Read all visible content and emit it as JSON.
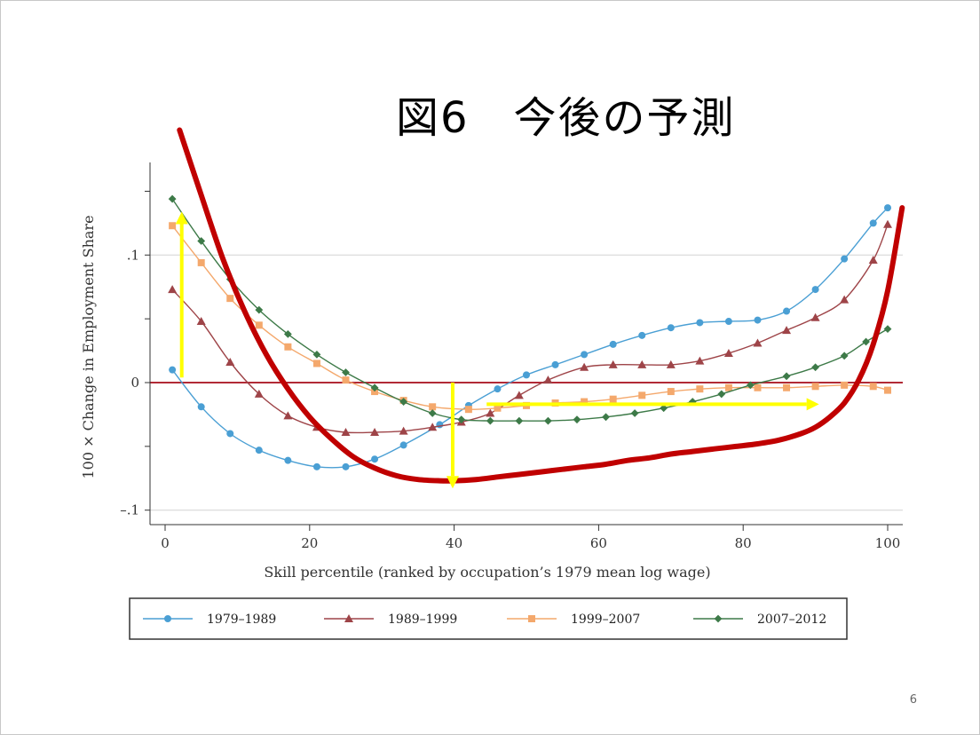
{
  "slide": {
    "title": "図6　今後の予測",
    "page_number": "6"
  },
  "chart_data": {
    "type": "line",
    "title": "",
    "xlabel": "Skill percentile (ranked by occupation’s 1979 mean log wage)",
    "ylabel": "100 × Change in Employment Share",
    "xlim": [
      0,
      100
    ],
    "ylim": [
      -0.1,
      0.15
    ],
    "xticks": [
      0,
      20,
      40,
      60,
      80,
      100
    ],
    "xtick_labels": [
      "0",
      "20",
      "40",
      "60",
      "80",
      "100"
    ],
    "yticks": [
      -0.1,
      0,
      0.1
    ],
    "ytick_labels": [
      "–.1",
      "0",
      ".1"
    ],
    "grid": "horizontal",
    "legend_position": "bottom",
    "series": [
      {
        "name": "1979–1989",
        "color": "#4a9fd4",
        "marker": "circle",
        "x": [
          1,
          5,
          9,
          13,
          17,
          21,
          25,
          29,
          33,
          38,
          42,
          46,
          50,
          54,
          58,
          62,
          66,
          70,
          74,
          78,
          82,
          86,
          90,
          94,
          98,
          100
        ],
        "y": [
          0.01,
          -0.019,
          -0.04,
          -0.053,
          -0.061,
          -0.066,
          -0.066,
          -0.06,
          -0.049,
          -0.033,
          -0.018,
          -0.005,
          0.006,
          0.014,
          0.022,
          0.03,
          0.037,
          0.043,
          0.047,
          0.048,
          0.049,
          0.056,
          0.073,
          0.097,
          0.125,
          0.137
        ]
      },
      {
        "name": "1989–1999",
        "color": "#9e4448",
        "marker": "triangle",
        "x": [
          1,
          5,
          9,
          13,
          17,
          21,
          25,
          29,
          33,
          37,
          41,
          45,
          49,
          53,
          58,
          62,
          66,
          70,
          74,
          78,
          82,
          86,
          90,
          94,
          98,
          100
        ],
        "y": [
          0.073,
          0.048,
          0.016,
          -0.009,
          -0.026,
          -0.035,
          -0.039,
          -0.039,
          -0.038,
          -0.035,
          -0.031,
          -0.024,
          -0.01,
          0.002,
          0.012,
          0.014,
          0.014,
          0.014,
          0.017,
          0.023,
          0.031,
          0.041,
          0.051,
          0.065,
          0.096,
          0.124
        ]
      },
      {
        "name": "1999–2007",
        "color": "#f4a86c",
        "marker": "square",
        "x": [
          1,
          5,
          9,
          13,
          17,
          21,
          25,
          29,
          33,
          37,
          42,
          46,
          50,
          54,
          58,
          62,
          66,
          70,
          74,
          78,
          82,
          86,
          90,
          94,
          98,
          100
        ],
        "y": [
          0.123,
          0.094,
          0.066,
          0.045,
          0.028,
          0.015,
          0.002,
          -0.007,
          -0.014,
          -0.019,
          -0.021,
          -0.02,
          -0.018,
          -0.016,
          -0.015,
          -0.013,
          -0.01,
          -0.007,
          -0.005,
          -0.004,
          -0.004,
          -0.004,
          -0.003,
          -0.002,
          -0.003,
          -0.006
        ]
      },
      {
        "name": "2007–2012",
        "color": "#3d7a48",
        "marker": "diamond",
        "x": [
          1,
          5,
          9,
          13,
          17,
          21,
          25,
          29,
          33,
          37,
          41,
          45,
          49,
          53,
          57,
          61,
          65,
          69,
          73,
          77,
          81,
          86,
          90,
          94,
          97,
          100
        ],
        "y": [
          0.144,
          0.111,
          0.081,
          0.057,
          0.038,
          0.022,
          0.008,
          -0.004,
          -0.015,
          -0.024,
          -0.029,
          -0.03,
          -0.03,
          -0.03,
          -0.029,
          -0.027,
          -0.024,
          -0.02,
          -0.015,
          -0.009,
          -0.002,
          0.005,
          0.012,
          0.021,
          0.032,
          0.042
        ]
      }
    ],
    "overlays": {
      "red_curve": {
        "color": "#c00000",
        "x": [
          2,
          5,
          8,
          11,
          14,
          17,
          20,
          23,
          26,
          29,
          32,
          35,
          38,
          40,
          43,
          46,
          49,
          52,
          55,
          58,
          61,
          64,
          67,
          70,
          73,
          76,
          79,
          82,
          85,
          88,
          90,
          92,
          94,
          96,
          98,
          100,
          102
        ],
        "y": [
          0.198,
          0.147,
          0.097,
          0.056,
          0.022,
          -0.005,
          -0.027,
          -0.044,
          -0.058,
          -0.067,
          -0.073,
          -0.076,
          -0.077,
          -0.077,
          -0.076,
          -0.074,
          -0.072,
          -0.07,
          -0.068,
          -0.066,
          -0.064,
          -0.061,
          -0.059,
          -0.056,
          -0.054,
          -0.052,
          -0.05,
          -0.048,
          -0.045,
          -0.04,
          -0.035,
          -0.027,
          -0.016,
          0.002,
          0.03,
          0.072,
          0.137
        ]
      },
      "yellow_arrows": {
        "color": "#ffff00",
        "arrows": [
          {
            "from": [
              2.3,
              0.004
            ],
            "to": [
              2.3,
              0.134
            ]
          },
          {
            "from": [
              39.8,
              0.0
            ],
            "to": [
              39.8,
              -0.083
            ]
          },
          {
            "from": [
              44.5,
              -0.017
            ],
            "to": [
              90.5,
              -0.017
            ]
          }
        ]
      }
    }
  }
}
